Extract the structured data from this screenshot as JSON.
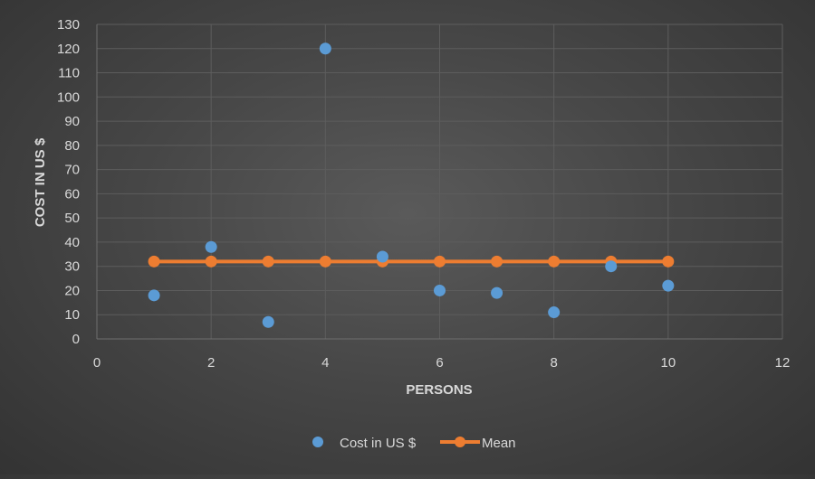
{
  "colors": {
    "cost": "#5b9bd5",
    "mean": "#ed7d31",
    "grid": "#5d5d5d",
    "text": "#d9d9d9"
  },
  "chart_data": {
    "type": "scatter",
    "xlabel": "PERSONS",
    "ylabel": "COST IN US $",
    "xlim": [
      0,
      12
    ],
    "ylim": [
      0,
      130
    ],
    "x_ticks": [
      0,
      2,
      4,
      6,
      8,
      10,
      12
    ],
    "y_ticks": [
      0,
      10,
      20,
      30,
      40,
      50,
      60,
      70,
      80,
      90,
      100,
      110,
      120,
      130
    ],
    "grid": true,
    "legend_position": "bottom",
    "series": [
      {
        "name": "Cost in US $",
        "type": "scatter",
        "color": "#5b9bd5",
        "x": [
          1,
          2,
          3,
          4,
          5,
          6,
          7,
          8,
          9,
          10
        ],
        "y": [
          18,
          38,
          7,
          120,
          34,
          20,
          19,
          11,
          30,
          22
        ]
      },
      {
        "name": "Mean",
        "type": "line",
        "color": "#ed7d31",
        "x": [
          1,
          2,
          3,
          4,
          5,
          6,
          7,
          8,
          9,
          10
        ],
        "y": [
          32,
          32,
          32,
          32,
          32,
          32,
          32,
          32,
          32,
          32
        ]
      }
    ]
  }
}
